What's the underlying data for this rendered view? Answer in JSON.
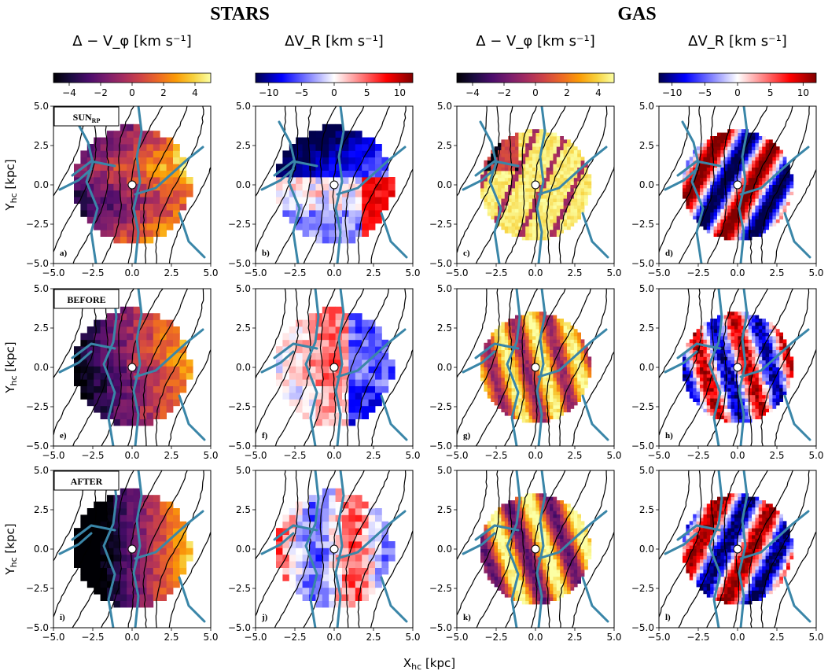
{
  "titles": {
    "stars": "STARS",
    "gas": "GAS"
  },
  "column_titles": [
    "Δ − V_φ [km s⁻¹]",
    "ΔV_R [km s⁻¹]",
    "Δ − V_φ [km s⁻¹]",
    "ΔV_R [km s⁻¹]"
  ],
  "colorbars": [
    {
      "cmap": "inferno",
      "min": -5,
      "max": 5,
      "ticks": [
        "−4",
        "−2",
        "0",
        "2",
        "4"
      ]
    },
    {
      "cmap": "seismic",
      "min": -12,
      "max": 12,
      "ticks": [
        "−10",
        "−5",
        "0",
        "5",
        "10"
      ]
    },
    {
      "cmap": "inferno",
      "min": -5,
      "max": 5,
      "ticks": [
        "−4",
        "−2",
        "0",
        "2",
        "4"
      ]
    },
    {
      "cmap": "seismic",
      "min": -12,
      "max": 12,
      "ticks": [
        "−10",
        "−5",
        "0",
        "5",
        "10"
      ]
    }
  ],
  "row_labels": [
    "SUN",
    "BEFORE",
    "AFTER"
  ],
  "row_label_sub": "RP",
  "panel_labels": [
    "a)",
    "b)",
    "c)",
    "d)",
    "e)",
    "f)",
    "g)",
    "h)",
    "i)",
    "j)",
    "k)",
    "l)"
  ],
  "axes": {
    "xlabel": "X",
    "xlabel_sub": "hc",
    "xlabel_unit": " [kpc]",
    "ylabel": "Y",
    "ylabel_sub": "hc",
    "ylabel_unit": " [kpc]",
    "xlim": [
      -5,
      5
    ],
    "ylim": [
      -5,
      5
    ],
    "x_ticks": [
      "−5.0",
      "−2.5",
      "0.0",
      "2.5",
      "5.0"
    ],
    "y_ticks": [
      "5.0",
      "2.5",
      "0.0",
      "−2.5",
      "−5.0"
    ]
  },
  "chart_data": {
    "type": "heatmap",
    "layout": "3 rows × 4 columns of map panels",
    "columns": [
      "STARS Δ − V_φ",
      "STARS ΔV_R",
      "GAS Δ − V_φ",
      "GAS ΔV_R"
    ],
    "rows": [
      "SUN_RP",
      "BEFORE",
      "AFTER"
    ],
    "sun_position": [
      0,
      0
    ],
    "star_map_radius_kpc": 3.7,
    "gas_map_radius_kpc": 3.5,
    "colors": {
      "spiral_arms": "#3a86a8",
      "density_contours": "#000000",
      "sun_marker": "#ffffff"
    }
  }
}
